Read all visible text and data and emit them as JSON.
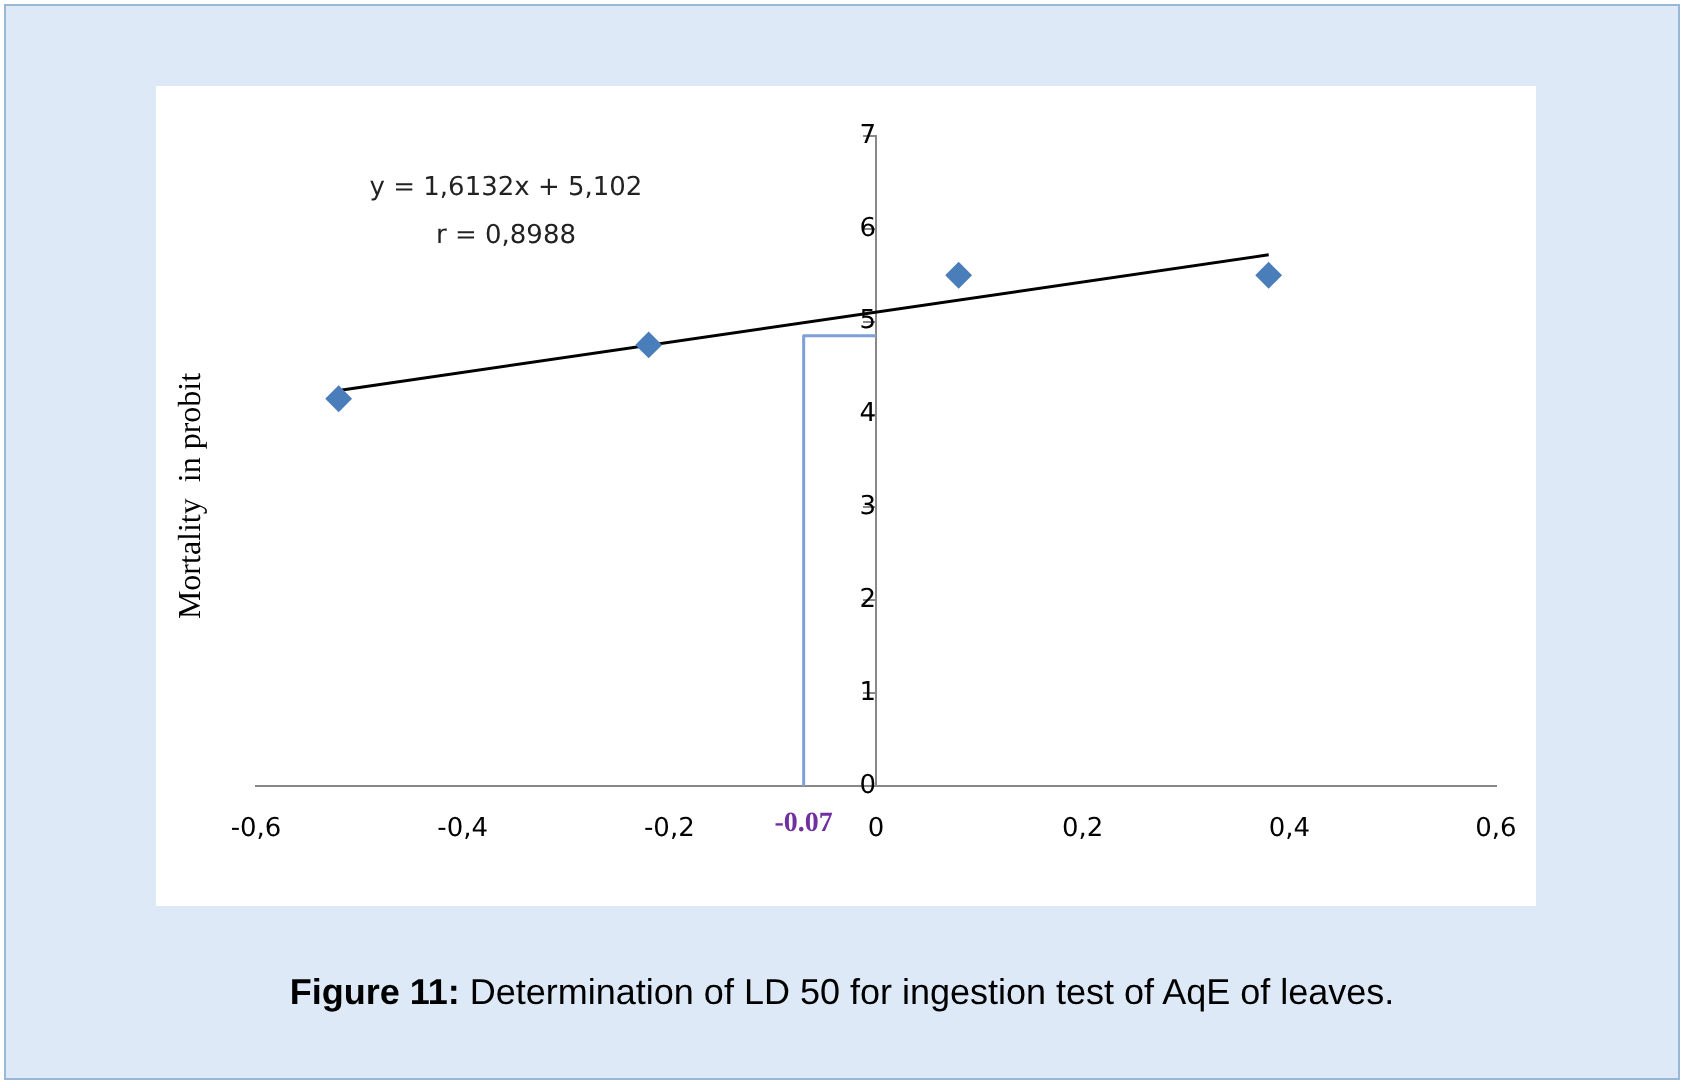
{
  "chart_data": {
    "type": "scatter",
    "title": "Figure 11: Determination of LD 50 for ingestion test of AqE of leaves.",
    "ylabel": "Mortality  in probit",
    "series": [
      {
        "color": "#4a7ebb",
        "x": [
          -0.52,
          -0.22,
          0.08,
          0.38
        ],
        "values": [
          4.17,
          4.75,
          5.5,
          5.5
        ],
        "marker": "diamond"
      },
      {
        "type": "line",
        "color": "#000000",
        "x": [
          -0.52,
          0.38
        ],
        "values": [
          4.26,
          5.72
        ],
        "marker": "none"
      },
      {
        "type": "line",
        "color": "#7f9fd8",
        "x": [
          -0.07,
          -0.07,
          0
        ],
        "values": [
          0,
          4.85,
          4.85
        ],
        "marker": "none"
      }
    ],
    "annotations": [
      "y = 1,6132x + 5,102",
      "r = 0,8988",
      {
        "text": "-0.07",
        "x": -0.07,
        "y": 0
      }
    ],
    "xlim": [
      -0.6,
      0.6
    ],
    "ylim": [
      0,
      7
    ],
    "xticks": [
      {
        "value": -0.6,
        "label": "-0,6"
      },
      {
        "value": -0.4,
        "label": "-0,4"
      },
      {
        "value": -0.2,
        "label": "-0,2"
      },
      0,
      {
        "value": 0.2,
        "label": "0,2"
      },
      {
        "value": 0.4,
        "label": "0,4"
      },
      {
        "value": 0.6,
        "label": "0,6"
      }
    ],
    "yticks": [
      0,
      1,
      2,
      3,
      4,
      5,
      6,
      7
    ],
    "grid": false,
    "legend": false
  }
}
